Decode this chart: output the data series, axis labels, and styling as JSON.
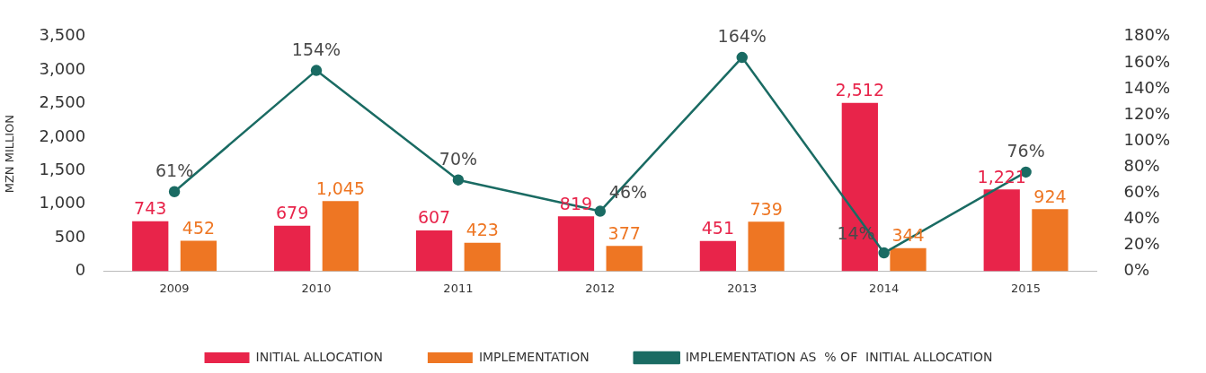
{
  "chart_data": {
    "type": "bar",
    "ylabel": "MZN MILLION",
    "categories": [
      "2009",
      "2010",
      "2011",
      "2012",
      "2013",
      "2014",
      "2015"
    ],
    "series": [
      {
        "name": "INITIAL ALLOCATION",
        "color": "#e8244a",
        "values": [
          743,
          679,
          607,
          819,
          451,
          2512,
          1221
        ],
        "value_labels": [
          "743",
          "679",
          "607",
          "819",
          "451",
          "2,512",
          "1,221"
        ]
      },
      {
        "name": "IMPLEMENTATION",
        "color": "#ee7623",
        "values": [
          452,
          1045,
          423,
          377,
          739,
          344,
          924
        ],
        "value_labels": [
          "452",
          "1,045",
          "423",
          "377",
          "739",
          "344",
          "924"
        ]
      },
      {
        "name": "IMPLEMENTATION AS  % OF  INITIAL ALLOCATION",
        "type": "line",
        "axis": "y2",
        "color": "#1a6b63",
        "marker": "circle",
        "line_style": "solid",
        "values": [
          61,
          154,
          70,
          46,
          164,
          14,
          76
        ],
        "value_labels": [
          "61%",
          "154%",
          "70%",
          "46%",
          "164%",
          "14%",
          "76%"
        ]
      }
    ],
    "ylim": [
      0,
      3500
    ],
    "yticks": [
      0,
      500,
      {
        "value": 1000,
        "label": "1,000"
      },
      {
        "value": 1500,
        "label": "1,500"
      },
      {
        "value": 2000,
        "label": "2,000"
      },
      {
        "value": 2500,
        "label": "2,500"
      },
      {
        "value": 3000,
        "label": "3,000"
      },
      {
        "value": 3500,
        "label": "3,500"
      }
    ],
    "y2lim": [
      0,
      180
    ],
    "y2ticks": [
      {
        "value": 0,
        "label": "0%"
      },
      {
        "value": 20,
        "label": "20%"
      },
      {
        "value": 40,
        "label": "40%"
      },
      {
        "value": 60,
        "label": "60%"
      },
      {
        "value": 80,
        "label": "80%"
      },
      {
        "value": 100,
        "label": "100%"
      },
      {
        "value": 120,
        "label": "120%"
      },
      {
        "value": 140,
        "label": "140%"
      },
      {
        "value": 160,
        "label": "160%"
      },
      {
        "value": 180,
        "label": "180%"
      }
    ],
    "grid": false,
    "legend": "bottom"
  }
}
